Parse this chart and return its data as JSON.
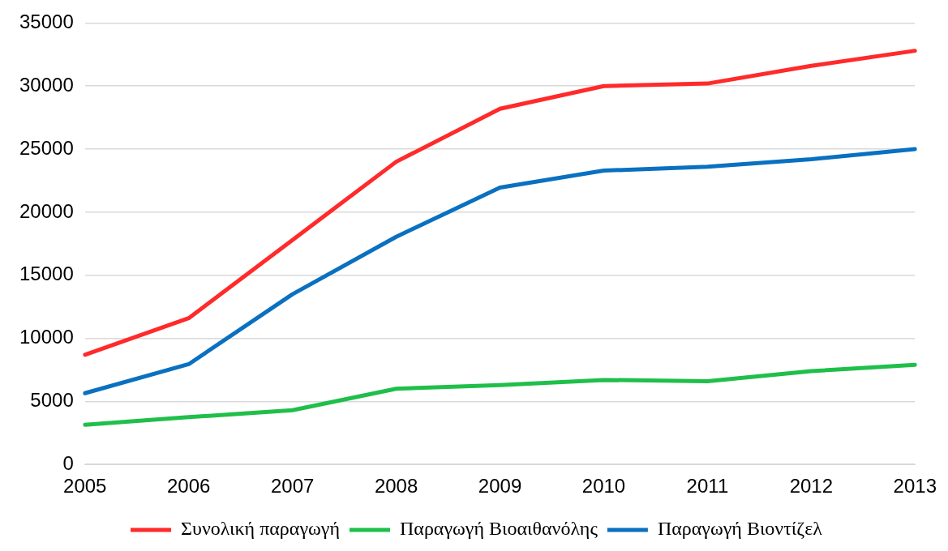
{
  "chart_data": {
    "type": "line",
    "categories": [
      "2005",
      "2006",
      "2007",
      "2008",
      "2009",
      "2010",
      "2011",
      "2012",
      "2013"
    ],
    "series": [
      {
        "name": "Συνολική παραγωγή",
        "color": "#ff2a2a",
        "values": [
          8700,
          11600,
          17800,
          24000,
          28200,
          30000,
          30200,
          31600,
          32800
        ]
      },
      {
        "name": "Παραγωγή Βιοαιθανόλης",
        "color": "#1fbf4a",
        "values": [
          3150,
          3750,
          4300,
          6000,
          6300,
          6700,
          6600,
          7400,
          7900
        ]
      },
      {
        "name": "Παραγωγή Βιοντίζελ",
        "color": "#0a70c0",
        "values": [
          5650,
          7950,
          13500,
          18050,
          21950,
          23300,
          23600,
          24200,
          25000
        ]
      }
    ],
    "ylim": [
      0,
      35000
    ],
    "yticks": [
      0,
      5000,
      10000,
      15000,
      20000,
      25000,
      30000,
      35000
    ],
    "grid": "y",
    "legend": "bottom",
    "marker": "none",
    "line_style": "solid"
  }
}
